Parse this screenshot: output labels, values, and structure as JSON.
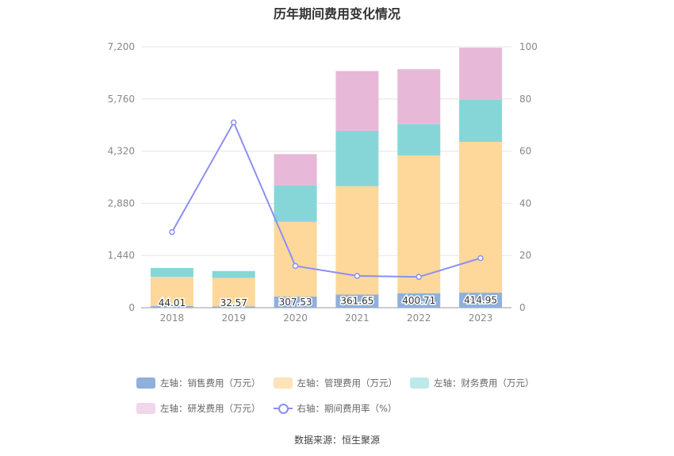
{
  "chart_data": {
    "type": "bar",
    "title": "历年期间费用变化情况",
    "categories": [
      "2018",
      "2019",
      "2020",
      "2021",
      "2022",
      "2023"
    ],
    "series": [
      {
        "name": "左轴：销售费用（万元）",
        "values": [
          44.01,
          32.57,
          307.53,
          361.65,
          400.71,
          414.95
        ],
        "color": "#8fb0dc",
        "labels": [
          "44.01",
          "32.57",
          "307.53",
          "361.65",
          "400.71",
          "414.95"
        ]
      },
      {
        "name": "左轴：管理费用（万元）",
        "values": [
          810,
          790,
          2060,
          2990,
          3800,
          4160
        ],
        "color": "#fdd89a"
      },
      {
        "name": "左轴：财务费用（万元）",
        "values": [
          240,
          190,
          1010,
          1530,
          870,
          1160
        ],
        "color": "#86d6d8"
      },
      {
        "name": "左轴：研发费用（万元）",
        "values": [
          0,
          0,
          860,
          1650,
          1510,
          1440
        ],
        "color": "#e8b8d8"
      }
    ],
    "line_series": {
      "name": "右轴：期间费用率（%）",
      "values": [
        29.0,
        71.0,
        16.0,
        12.2,
        11.8,
        19.0
      ],
      "color": "#8b8ff5"
    },
    "y_left": {
      "min": 0,
      "max": 7200,
      "ticks": [
        "0",
        "1,440",
        "2,880",
        "4,320",
        "5,760",
        "7,200"
      ]
    },
    "y_right": {
      "min": 0,
      "max": 100,
      "ticks": [
        "0",
        "20",
        "40",
        "60",
        "80",
        "100"
      ]
    },
    "grid": true,
    "legend_position": "bottom"
  },
  "source": "数据来源：恒生聚源"
}
